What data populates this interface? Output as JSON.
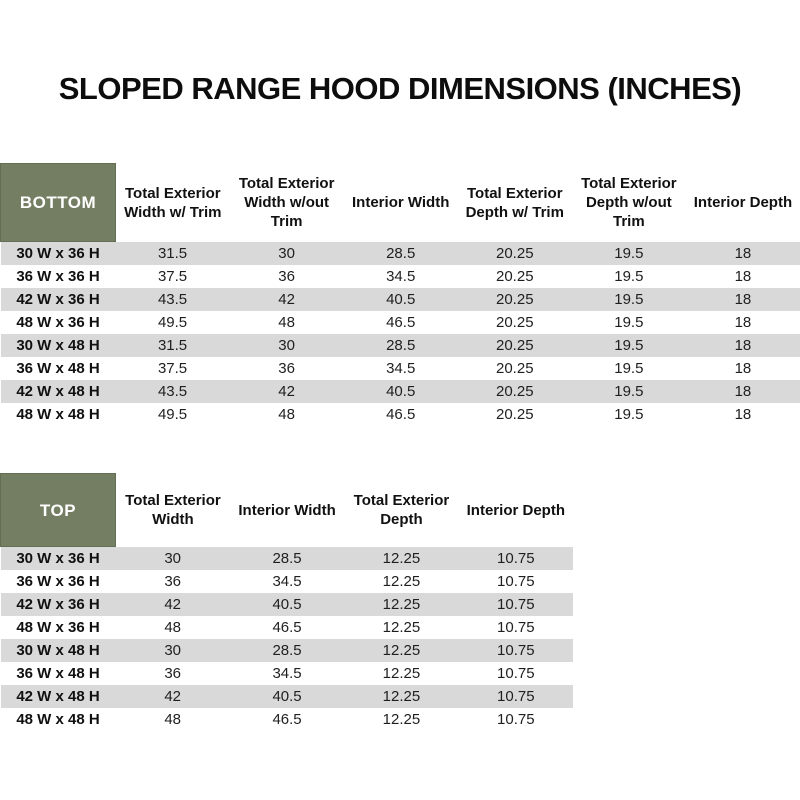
{
  "title": "SLOPED RANGE HOOD DIMENSIONS (INCHES)",
  "colors": {
    "header_green": "#737e62",
    "header_text": "#ffffff",
    "stripe_gray": "#d9d9d9",
    "body_text": "#1a1a1a"
  },
  "bottom_table": {
    "label": "BOTTOM",
    "columns": [
      "Total Exterior Width w/ Trim",
      "Total Exterior Width w/out Trim",
      "Interior Width",
      "Total Exterior Depth w/ Trim",
      "Total Exterior Depth w/out Trim",
      "Interior Depth"
    ],
    "rows": [
      {
        "label": "30 W x 36 H",
        "values": [
          "31.5",
          "30",
          "28.5",
          "20.25",
          "19.5",
          "18"
        ]
      },
      {
        "label": "36 W x 36 H",
        "values": [
          "37.5",
          "36",
          "34.5",
          "20.25",
          "19.5",
          "18"
        ]
      },
      {
        "label": "42 W x 36 H",
        "values": [
          "43.5",
          "42",
          "40.5",
          "20.25",
          "19.5",
          "18"
        ]
      },
      {
        "label": "48 W x 36 H",
        "values": [
          "49.5",
          "48",
          "46.5",
          "20.25",
          "19.5",
          "18"
        ]
      },
      {
        "label": "30 W x 48 H",
        "values": [
          "31.5",
          "30",
          "28.5",
          "20.25",
          "19.5",
          "18"
        ]
      },
      {
        "label": "36 W x 48 H",
        "values": [
          "37.5",
          "36",
          "34.5",
          "20.25",
          "19.5",
          "18"
        ]
      },
      {
        "label": "42 W x 48 H",
        "values": [
          "43.5",
          "42",
          "40.5",
          "20.25",
          "19.5",
          "18"
        ]
      },
      {
        "label": "48 W x 48 H",
        "values": [
          "49.5",
          "48",
          "46.5",
          "20.25",
          "19.5",
          "18"
        ]
      }
    ]
  },
  "top_table": {
    "label": "TOP",
    "columns": [
      "Total Exterior Width",
      "Interior Width",
      "Total Exterior Depth",
      "Interior Depth"
    ],
    "rows": [
      {
        "label": "30 W x 36 H",
        "values": [
          "30",
          "28.5",
          "12.25",
          "10.75"
        ]
      },
      {
        "label": "36 W x 36 H",
        "values": [
          "36",
          "34.5",
          "12.25",
          "10.75"
        ]
      },
      {
        "label": "42 W x 36 H",
        "values": [
          "42",
          "40.5",
          "12.25",
          "10.75"
        ]
      },
      {
        "label": "48 W x 36 H",
        "values": [
          "48",
          "46.5",
          "12.25",
          "10.75"
        ]
      },
      {
        "label": "30 W x 48 H",
        "values": [
          "30",
          "28.5",
          "12.25",
          "10.75"
        ]
      },
      {
        "label": "36 W x 48 H",
        "values": [
          "36",
          "34.5",
          "12.25",
          "10.75"
        ]
      },
      {
        "label": "42 W x 48 H",
        "values": [
          "42",
          "40.5",
          "12.25",
          "10.75"
        ]
      },
      {
        "label": "48 W x 48 H",
        "values": [
          "48",
          "46.5",
          "12.25",
          "10.75"
        ]
      }
    ]
  }
}
